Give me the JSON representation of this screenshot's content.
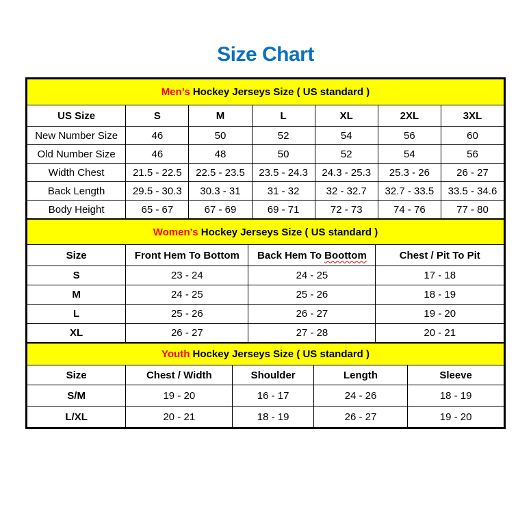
{
  "page": {
    "title": "Size Chart"
  },
  "colors": {
    "title_blue": "#0c70c0",
    "band_yellow": "#ffff00",
    "accent_red": "#ff0000",
    "border_black": "#000000"
  },
  "tables": [
    {
      "id": "mens",
      "title_accent": "Men’s",
      "title_rest": " Hockey Jerseys Size ( US standard )",
      "columns": [
        "US Size",
        "S",
        "M",
        "L",
        "XL",
        "2XL",
        "3XL"
      ],
      "rows": [
        [
          "New Number Size",
          "46",
          "50",
          "52",
          "54",
          "56",
          "60"
        ],
        [
          "Old Number Size",
          "46",
          "48",
          "50",
          "52",
          "54",
          "56"
        ],
        [
          "Width Chest",
          "21.5 - 22.5",
          "22.5 - 23.5",
          "23.5 - 24.3",
          "24.3 - 25.3",
          "25.3 - 26",
          "26 - 27"
        ],
        [
          "Back Length",
          "29.5 - 30.3",
          "30.3 - 31",
          "31 - 32",
          "32 - 32.7",
          "32.7 - 33.5",
          "33.5 - 34.6"
        ],
        [
          "Body Height",
          "65 - 67",
          "67 - 69",
          "69 - 71",
          "72 - 73",
          "74 - 76",
          "77 - 80"
        ]
      ]
    },
    {
      "id": "womens",
      "title_accent": "Women’s",
      "title_rest": " Hockey Jerseys Size ( US standard )",
      "columns": [
        "Size",
        "Front Hem To Bottom",
        "Back Hem To Boottom",
        "Chest / Pit To Pit"
      ],
      "wavy_underline": {
        "column_index": 2,
        "word": "Boottom"
      },
      "rows": [
        [
          "S",
          "23 - 24",
          "24 - 25",
          "17 - 18"
        ],
        [
          "M",
          "24 - 25",
          "25 - 26",
          "18 - 19"
        ],
        [
          "L",
          "25 - 26",
          "26 - 27",
          "19 - 20"
        ],
        [
          "XL",
          "26 - 27",
          "27 - 28",
          "20 - 21"
        ]
      ]
    },
    {
      "id": "youth",
      "title_accent": "Youth",
      "title_rest": " Hockey Jerseys Size ( US standard )",
      "columns": [
        "Size",
        "Chest / Width",
        "Shoulder",
        "Length",
        "Sleeve"
      ],
      "rows": [
        [
          "S/M",
          "19 - 20",
          "16 - 17",
          "24 - 26",
          "18 - 19"
        ],
        [
          "L/XL",
          "20 - 21",
          "18 - 19",
          "26 - 27",
          "19 - 20"
        ]
      ]
    }
  ]
}
